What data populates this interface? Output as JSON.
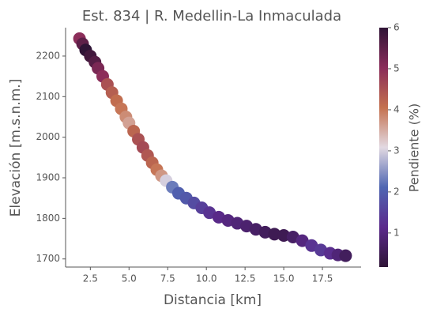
{
  "chart_data": {
    "type": "scatter",
    "title": "Est. 834 | R. Medellin-La Inmaculada",
    "xlabel": "Distancia [km]",
    "ylabel": "Elevación [m.s.n.m.]",
    "x": [
      1.8,
      2.0,
      2.2,
      2.5,
      2.8,
      3.0,
      3.3,
      3.6,
      3.9,
      4.2,
      4.5,
      4.8,
      5.0,
      5.3,
      5.6,
      5.9,
      6.2,
      6.5,
      6.8,
      7.1,
      7.4,
      7.8,
      8.2,
      8.7,
      9.2,
      9.7,
      10.2,
      10.8,
      11.4,
      12.0,
      12.6,
      13.2,
      13.8,
      14.4,
      15.0,
      15.6,
      16.2,
      16.8,
      17.4,
      18.0,
      18.5,
      19.0
    ],
    "y": [
      2243,
      2230,
      2215,
      2200,
      2185,
      2170,
      2150,
      2130,
      2110,
      2090,
      2070,
      2050,
      2035,
      2015,
      1995,
      1975,
      1955,
      1937,
      1920,
      1905,
      1893,
      1877,
      1862,
      1850,
      1838,
      1826,
      1814,
      1803,
      1795,
      1788,
      1781,
      1773,
      1766,
      1761,
      1758,
      1754,
      1745,
      1733,
      1722,
      1714,
      1710,
      1708
    ],
    "c": [
      5.0,
      5.5,
      6.0,
      5.8,
      5.6,
      5.2,
      5.0,
      4.5,
      4.3,
      4.1,
      4.0,
      3.8,
      3.6,
      4.2,
      4.5,
      4.6,
      4.4,
      4.2,
      4.0,
      3.7,
      3.0,
      2.3,
      2.0,
      1.9,
      1.7,
      1.5,
      1.3,
      1.1,
      1.0,
      0.9,
      0.8,
      0.7,
      0.6,
      0.5,
      0.5,
      0.7,
      1.0,
      1.3,
      1.4,
      1.2,
      0.9,
      0.6
    ],
    "xlim": [
      0.9,
      20.0
    ],
    "xticks": [
      {
        "value": 2.5,
        "label": "2.5"
      },
      {
        "value": 5,
        "label": "5.0"
      },
      {
        "value": 7.5,
        "label": "7.5"
      },
      {
        "value": 10,
        "label": "10.0"
      },
      {
        "value": 12.5,
        "label": "12.5"
      },
      {
        "value": 15,
        "label": "15.0"
      },
      {
        "value": 17.5,
        "label": "17.5"
      }
    ],
    "ylim": [
      1680,
      2270
    ],
    "yticks": [
      1700,
      1800,
      1900,
      2000,
      2100,
      2200
    ],
    "colorbar_label": "Pendiente (%)",
    "clim": [
      0.17,
      6
    ],
    "cticks": [
      1,
      2,
      3,
      4,
      5,
      6
    ],
    "colormap": [
      "#2f1436",
      "#5b2a8c",
      "#4f66b2",
      "#e2d9e2",
      "#c4704e",
      "#8a2c5a",
      "#2f1436"
    ]
  }
}
